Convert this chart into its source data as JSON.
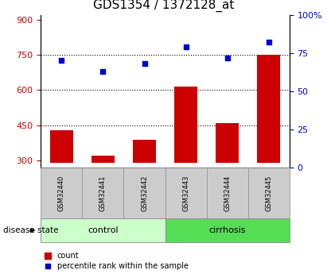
{
  "title": "GDS1354 / 1372128_at",
  "samples": [
    "GSM32440",
    "GSM32441",
    "GSM32442",
    "GSM32443",
    "GSM32444",
    "GSM32445"
  ],
  "groups": [
    "control",
    "control",
    "control",
    "cirrhosis",
    "cirrhosis",
    "cirrhosis"
  ],
  "counts": [
    430,
    320,
    390,
    615,
    460,
    750
  ],
  "percentile_ranks": [
    70,
    63,
    68,
    79,
    72,
    82
  ],
  "ylim_left": [
    270,
    920
  ],
  "ylim_right": [
    0,
    100
  ],
  "yticks_left": [
    300,
    450,
    600,
    750,
    900
  ],
  "yticks_right": [
    0,
    25,
    50,
    75,
    100
  ],
  "bar_color": "#cc0000",
  "dot_color": "#0000cc",
  "bar_bottom": 290,
  "hlines": [
    750,
    600,
    450
  ],
  "control_label": "control",
  "cirrhosis_label": "cirrhosis",
  "disease_state_label": "disease state",
  "legend_bar_label": "count",
  "legend_dot_label": "percentile rank within the sample",
  "title_fontsize": 11,
  "tick_fontsize": 8,
  "sample_fontsize": 6,
  "group_fontsize": 8,
  "legend_fontsize": 7,
  "control_color": "#ccffcc",
  "cirrhosis_color": "#55dd55",
  "sample_box_color": "#cccccc",
  "bar_width": 0.55
}
